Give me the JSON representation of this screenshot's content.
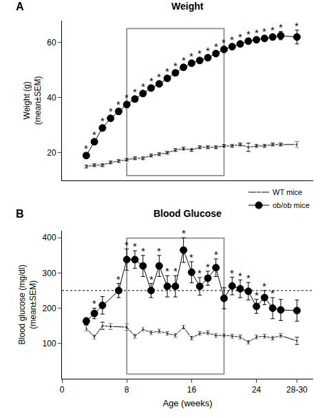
{
  "chart_data": [
    {
      "type": "line",
      "panel": "A",
      "title": "Weight",
      "ylabel": [
        "Weight (g)",
        "(mean±SEM)"
      ],
      "xlim": [
        0,
        31
      ],
      "ylim": [
        10,
        68
      ],
      "yticks": [
        20,
        40,
        60
      ],
      "tick_labels": "y",
      "grid": false,
      "legend": "bottom right",
      "highlight": [
        8,
        20
      ],
      "series": [
        {
          "name": "WT mice",
          "color": "#000000",
          "marker": "square-open",
          "line_style": "solid",
          "x": [
            3,
            4,
            5,
            6,
            7,
            8,
            9,
            10,
            11,
            12,
            13,
            14,
            15,
            16,
            17,
            18,
            19,
            20,
            21,
            22,
            23,
            24,
            25,
            26,
            27,
            29
          ],
          "values": [
            15,
            15.5,
            15.5,
            16.5,
            17,
            17.5,
            18,
            18,
            19,
            19.5,
            20,
            21,
            21.5,
            21,
            22,
            22,
            22,
            22.5,
            22.5,
            23,
            22,
            22.5,
            22.5,
            23,
            23,
            23
          ],
          "errors": [
            0.5,
            0.5,
            0.5,
            0.5,
            0.5,
            0.5,
            0.5,
            0.5,
            0.5,
            0.5,
            0.5,
            0.5,
            0.5,
            0.5,
            0.5,
            0.5,
            0.5,
            0.5,
            0.5,
            0.5,
            1.5,
            0.5,
            0.5,
            0.5,
            0.5,
            1
          ]
        },
        {
          "name": "ob/ob mice",
          "color": "#000000",
          "marker": "circle",
          "line_style": "solid",
          "x": [
            3,
            4,
            5,
            6,
            7,
            8,
            9,
            10,
            11,
            12,
            13,
            14,
            15,
            16,
            17,
            18,
            19,
            20,
            21,
            22,
            23,
            24,
            25,
            26,
            27,
            29
          ],
          "values": [
            19,
            24,
            29,
            32.5,
            35,
            37.5,
            39.5,
            41.5,
            43.5,
            45,
            47,
            49,
            51,
            52.5,
            53.5,
            54.5,
            56,
            57.5,
            58.5,
            59.5,
            60.5,
            61,
            61.5,
            62,
            62.5,
            62
          ],
          "errors": [
            1,
            1,
            1,
            1,
            1,
            1,
            1,
            1,
            1,
            1,
            1,
            1,
            1,
            1,
            1,
            1,
            1,
            1,
            1,
            1,
            1,
            1,
            1,
            1,
            1.5,
            2.5
          ],
          "significance": {
            "text": "*",
            "x": [
              3,
              4,
              5,
              6,
              7,
              8,
              9,
              10,
              11,
              12,
              13,
              14,
              15,
              16,
              17,
              18,
              19,
              20,
              21,
              22,
              23,
              24,
              25,
              26,
              27,
              29
            ]
          }
        }
      ]
    },
    {
      "type": "line",
      "panel": "B",
      "title": "Blood Glucose",
      "xlabel": "Age (weeks)",
      "ylabel": [
        "Blood glucose (mg/dl)",
        "(mean±SEM)"
      ],
      "xlim": [
        0,
        31
      ],
      "xticks": [
        0,
        8,
        16,
        24,
        {
          "value": 29,
          "label": "28-30"
        }
      ],
      "ylim": [
        0,
        420
      ],
      "yticks": [
        100,
        200,
        300,
        400
      ],
      "grid": false,
      "highlight": [
        8,
        20
      ],
      "reference_line": {
        "y": 250,
        "line_style": "dotted"
      },
      "series": [
        {
          "name": "WT mice",
          "color": "#000000",
          "marker": "square-open",
          "line_style": "solid",
          "x": [
            3,
            4,
            5,
            6,
            8,
            9,
            10,
            11,
            12,
            13,
            14,
            15,
            16,
            17,
            18,
            19,
            20,
            21,
            22,
            23,
            24,
            25,
            26,
            27,
            29
          ],
          "values": [
            143,
            118,
            150,
            148,
            146,
            120,
            140,
            130,
            135,
            128,
            123,
            146,
            115,
            128,
            130,
            122,
            123,
            120,
            118,
            103,
            118,
            120,
            115,
            122,
            107
          ],
          "errors": [
            8,
            6,
            10,
            8,
            8,
            6,
            7,
            6,
            6,
            6,
            6,
            6,
            6,
            6,
            6,
            6,
            6,
            6,
            6,
            6,
            6,
            6,
            6,
            6,
            10
          ]
        },
        {
          "name": "ob/ob mice",
          "color": "#000000",
          "marker": "circle",
          "line_style": "solid",
          "x": [
            3,
            4,
            5,
            7,
            8,
            9,
            10,
            11,
            12,
            13,
            14,
            15,
            16,
            17,
            18,
            19,
            20,
            21,
            22,
            23,
            24,
            25,
            26,
            27,
            29
          ],
          "values": [
            163,
            185,
            208,
            250,
            338,
            338,
            320,
            250,
            320,
            262,
            262,
            365,
            302,
            262,
            285,
            315,
            228,
            263,
            255,
            248,
            205,
            230,
            200,
            195,
            193
          ],
          "errors": [
            10,
            15,
            25,
            20,
            30,
            25,
            30,
            20,
            30,
            30,
            30,
            35,
            30,
            25,
            20,
            25,
            30,
            25,
            25,
            25,
            20,
            20,
            30,
            30,
            30
          ],
          "significance": {
            "text": "*",
            "x": [
              4,
              7,
              8,
              9,
              10,
              11,
              12,
              13,
              14,
              15,
              16,
              17,
              18,
              19,
              21,
              22,
              23,
              24,
              25,
              26
            ]
          }
        }
      ]
    }
  ]
}
